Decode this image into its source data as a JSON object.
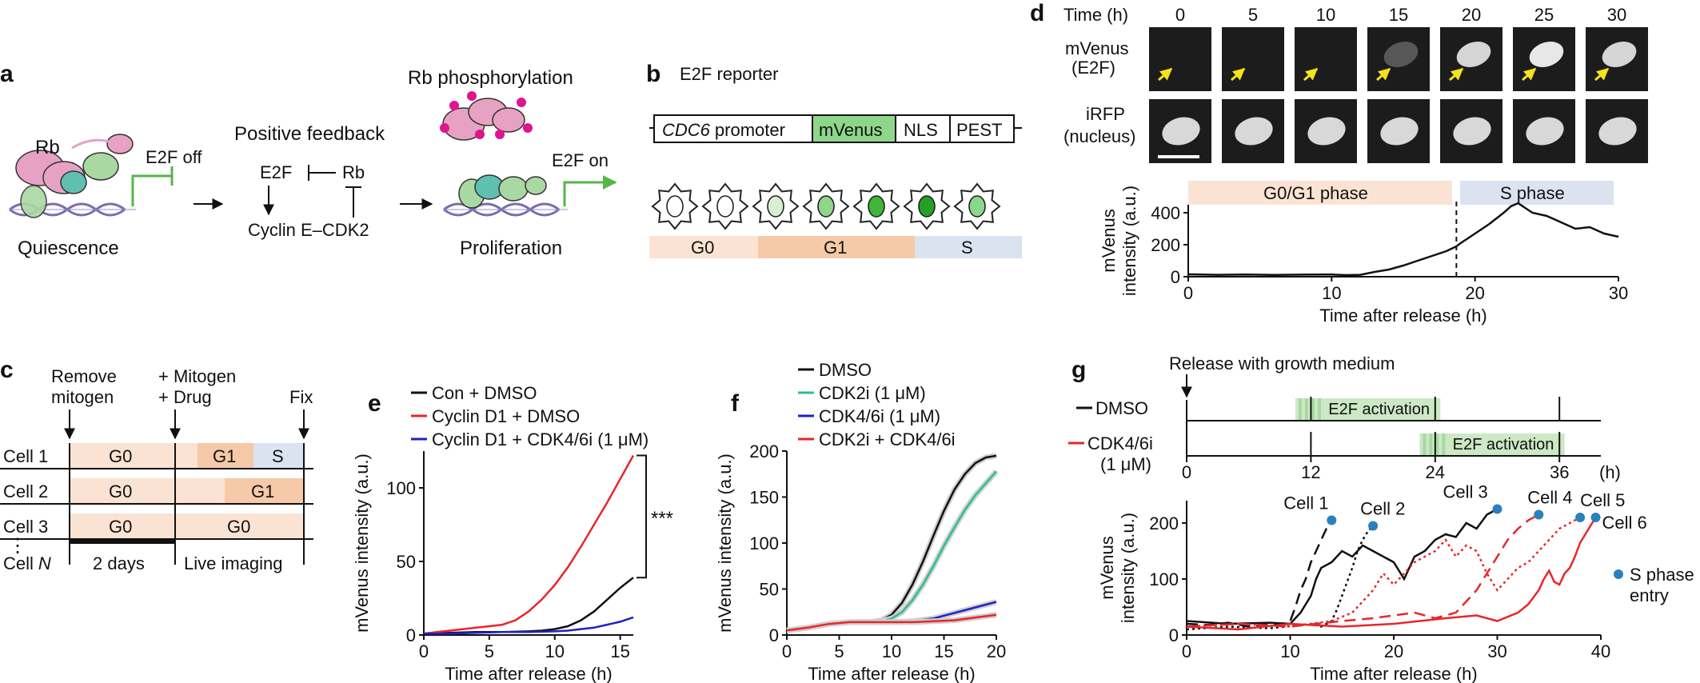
{
  "panels": {
    "a": {
      "letter": "a",
      "rb": "Rb",
      "e2f_off": "E2F off",
      "quiescence": "Quiescence",
      "positive_feedback": "Positive feedback",
      "e2f": "E2F",
      "rb2": "Rb",
      "cyclin": "Cyclin E–CDK2",
      "rb_phos": "Rb phosphorylation",
      "e2f_on": "E2F on",
      "proliferation": "Proliferation"
    },
    "b": {
      "letter": "b",
      "title": "E2F reporter",
      "promoter_italic": "CDC6",
      "promoter": "promoter",
      "mvenus": "mVenus",
      "nls": "NLS",
      "pest": "PEST",
      "phases": [
        "G0",
        "G1",
        "S"
      ]
    },
    "c": {
      "letter": "c",
      "remove": "Remove",
      "mitogen": "mitogen",
      "plus_mitogen": "+ Mitogen",
      "plus_drug": "+ Drug",
      "fix": "Fix",
      "cells": [
        "Cell 1",
        "Cell 2",
        "Cell 3"
      ],
      "dots": "⋮",
      "cell_n": "Cell",
      "cell_n_italic": "N",
      "g0": "G0",
      "g1": "G1",
      "s": "S",
      "two_days": "2 days",
      "live": "Live imaging"
    },
    "d": {
      "letter": "d",
      "time_label": "Time (h)",
      "times": [
        "0",
        "5",
        "10",
        "15",
        "20",
        "25",
        "30"
      ],
      "row1_a": "mVenus",
      "row1_b": "(E2F)",
      "row2_a": "iRFP",
      "row2_b": "(nucleus)",
      "g0g1": "G0/G1 phase",
      "sphase": "S phase"
    },
    "g": {
      "letter": "g",
      "release": "Release with growth medium",
      "dmso": "DMSO",
      "cdk46_a": "CDK4/6i",
      "cdk46_b": "(1 μM)",
      "tl_ticks": [
        "0",
        "12",
        "24",
        "36"
      ],
      "tl_unit": "(h)",
      "e2f_activation": "E2F activation",
      "cell_labels": [
        "Cell 1",
        "Cell 2",
        "Cell 3",
        "Cell 4",
        "Cell 5",
        "Cell 6"
      ],
      "s_entry_a": "S phase",
      "s_entry_b": "entry"
    }
  },
  "colors": {
    "g0": "#fbe3d3",
    "g1": "#f6c9a8",
    "s": "#dbe3f1",
    "green": "#56b64a",
    "mvenus_green": "#8ed68a",
    "red": "#e8262a",
    "blue": "#2020c8",
    "teal": "#2bbf8e",
    "dot": "#2a7fbf",
    "pink": "#e7a2c3",
    "magenta": "#e0148c"
  },
  "chart_data": [
    {
      "id": "d",
      "type": "line",
      "xlabel": "Time after release (h)",
      "ylabel": "mVenus intensity (a.u.)",
      "xlim": [
        0,
        30
      ],
      "ylim": [
        0,
        450
      ],
      "xticks": [
        "0",
        "10",
        "20",
        "30"
      ],
      "yticks": [
        "0",
        "200",
        "400"
      ],
      "x": [
        0,
        2,
        4,
        6,
        8,
        10,
        11,
        12,
        13,
        14,
        15,
        16,
        17,
        18,
        18.7,
        19,
        19.5,
        20,
        21,
        22,
        22.5,
        23,
        23.5,
        24,
        25,
        26,
        27,
        28,
        29,
        30
      ],
      "values": [
        15,
        12,
        14,
        11,
        13,
        14,
        10,
        12,
        30,
        45,
        70,
        100,
        130,
        160,
        190,
        210,
        240,
        270,
        330,
        400,
        440,
        460,
        430,
        400,
        380,
        340,
        300,
        310,
        270,
        250
      ],
      "boundary": 18.7,
      "phases": [
        {
          "name": "G0/G1 phase",
          "from": 0,
          "to": 18.7
        },
        {
          "name": "S phase",
          "from": 19,
          "to": 30
        }
      ]
    },
    {
      "id": "e",
      "letter": "e",
      "type": "line",
      "xlabel": "Time after release (h)",
      "ylabel": "mVenus intensity (a.u.)",
      "xlim": [
        0,
        16
      ],
      "ylim": [
        0,
        125
      ],
      "xticks": [
        "0",
        "5",
        "10",
        "15"
      ],
      "yticks": [
        "0",
        "50",
        "100"
      ],
      "significance": "***",
      "series": [
        {
          "name": "Con + DMSO",
          "color": "#111111",
          "x": [
            0,
            2,
            4,
            6,
            8,
            9,
            10,
            11,
            12,
            13,
            14,
            15,
            16
          ],
          "values": [
            1,
            1.5,
            2,
            2,
            2.5,
            3,
            4,
            6,
            10,
            16,
            24,
            32,
            39
          ]
        },
        {
          "name": "Cyclin D1 + DMSO",
          "color": "#e8262a",
          "x": [
            0,
            1,
            2,
            3,
            4,
            5,
            6,
            7,
            8,
            9,
            10,
            11,
            12,
            13,
            14,
            15,
            16
          ],
          "values": [
            1,
            2,
            3,
            4,
            5,
            6,
            7,
            10,
            16,
            24,
            34,
            46,
            60,
            75,
            90,
            106,
            122
          ]
        },
        {
          "name": "Cyclin D1 + CDK4/6i (1 μM)",
          "color": "#2020c8",
          "x": [
            0,
            2,
            4,
            6,
            8,
            10,
            11,
            12,
            13,
            14,
            15,
            16
          ],
          "values": [
            1,
            1,
            1.5,
            2,
            2,
            2.5,
            3,
            4,
            5,
            7,
            9,
            12
          ]
        }
      ]
    },
    {
      "id": "f",
      "letter": "f",
      "type": "line",
      "xlabel": "Time after release (h)",
      "ylabel": "mVenus intensity (a.u.)",
      "xlim": [
        0,
        20
      ],
      "ylim": [
        0,
        200
      ],
      "xticks": [
        "0",
        "5",
        "10",
        "15",
        "20"
      ],
      "yticks": [
        "0",
        "50",
        "100",
        "150",
        "200"
      ],
      "series": [
        {
          "name": "DMSO",
          "color": "#111111",
          "x": [
            0,
            2,
            4,
            6,
            8,
            9,
            10,
            11,
            12,
            13,
            14,
            15,
            16,
            17,
            18,
            19,
            20
          ],
          "values": [
            5,
            8,
            12,
            14,
            14,
            16,
            22,
            35,
            55,
            80,
            108,
            135,
            158,
            175,
            187,
            193,
            195
          ]
        },
        {
          "name": "CDK2i (1 μM)",
          "color": "#2bbf8e",
          "x": [
            0,
            2,
            4,
            6,
            8,
            9,
            10,
            11,
            12,
            13,
            14,
            15,
            16,
            17,
            18,
            19,
            20
          ],
          "values": [
            5,
            8,
            12,
            14,
            14,
            15,
            18,
            25,
            38,
            55,
            75,
            97,
            117,
            136,
            152,
            165,
            178
          ]
        },
        {
          "name": "CDK4/6i (1 μM)",
          "color": "#2020c8",
          "x": [
            0,
            2,
            4,
            6,
            8,
            10,
            12,
            14,
            16,
            18,
            20
          ],
          "values": [
            5,
            8,
            12,
            14,
            14,
            14,
            15,
            18,
            24,
            30,
            36
          ]
        },
        {
          "name": "CDK2i + CDK4/6i",
          "color": "#e8262a",
          "x": [
            0,
            2,
            4,
            6,
            8,
            10,
            12,
            14,
            16,
            18,
            20
          ],
          "values": [
            5,
            8,
            12,
            14,
            14,
            14,
            14,
            15,
            16,
            19,
            22
          ]
        }
      ]
    },
    {
      "id": "g-timeline",
      "type": "timeline",
      "xlim": [
        0,
        40
      ],
      "tick_values": [
        0,
        12,
        24,
        36
      ],
      "rows": [
        {
          "name": "DMSO",
          "color": "#111111",
          "activation": [
            10.5,
            24.5
          ],
          "entries": [
            12,
            24,
            36
          ]
        },
        {
          "name": "CDK4/6i (1 μM)",
          "color": "#e8262a",
          "activation": [
            22.5,
            36.5
          ],
          "entries": [
            12,
            24,
            36
          ]
        }
      ]
    },
    {
      "id": "g",
      "type": "line",
      "xlabel": "Time after release (h)",
      "ylabel": "mVenus intensity (a.u.)",
      "xlim": [
        0,
        40
      ],
      "ylim": [
        0,
        240
      ],
      "xticks": [
        "0",
        "10",
        "20",
        "30",
        "40"
      ],
      "yticks": [
        "0",
        "100",
        "200"
      ],
      "legend": "S phase entry",
      "series": [
        {
          "name": "Cell 1",
          "color": "#111111",
          "dash": "14,8",
          "x": [
            0,
            2,
            4,
            6,
            8,
            9,
            10,
            10.5,
            11,
            11.5,
            12,
            12.5,
            13,
            13.5,
            14
          ],
          "values": [
            20,
            18,
            22,
            15,
            20,
            18,
            25,
            50,
            80,
            100,
            130,
            150,
            170,
            190,
            205
          ]
        },
        {
          "name": "Cell 2",
          "color": "#111111",
          "dash": "3,4",
          "x": [
            0,
            4,
            8,
            12,
            13,
            14,
            14.5,
            15,
            15.5,
            16,
            16.5,
            17,
            17.5,
            18
          ],
          "values": [
            10,
            15,
            12,
            20,
            15,
            25,
            45,
            70,
            95,
            120,
            150,
            170,
            185,
            195
          ]
        },
        {
          "name": "Cell 3",
          "color": "#111111",
          "dash": "",
          "x": [
            0,
            4,
            8,
            10,
            11,
            12,
            12.5,
            13,
            14,
            15,
            16,
            17,
            18,
            19,
            20,
            21,
            22,
            23,
            24,
            25,
            26,
            27,
            28,
            29,
            30
          ],
          "values": [
            25,
            20,
            22,
            20,
            40,
            70,
            100,
            120,
            130,
            150,
            140,
            160,
            150,
            140,
            130,
            100,
            140,
            150,
            170,
            180,
            175,
            200,
            190,
            215,
            225
          ]
        },
        {
          "name": "Cell 4",
          "color": "#e8262a",
          "dash": "14,8",
          "x": [
            0,
            5,
            10,
            15,
            18,
            20,
            22,
            24,
            26,
            27,
            28,
            29,
            30,
            31,
            32,
            33,
            34
          ],
          "values": [
            15,
            20,
            15,
            25,
            30,
            35,
            40,
            30,
            40,
            60,
            80,
            110,
            140,
            170,
            190,
            205,
            215
          ]
        },
        {
          "name": "Cell 5",
          "color": "#e8262a",
          "dash": "3,4",
          "x": [
            0,
            5,
            10,
            14,
            16,
            17,
            18,
            19,
            20,
            22,
            24,
            25,
            26,
            27,
            28,
            29,
            30,
            31,
            32,
            33,
            34,
            35,
            36,
            37,
            38
          ],
          "values": [
            15,
            20,
            15,
            25,
            40,
            60,
            80,
            110,
            90,
            130,
            150,
            170,
            140,
            160,
            150,
            110,
            80,
            100,
            120,
            130,
            150,
            170,
            190,
            200,
            210
          ]
        },
        {
          "name": "Cell 6",
          "color": "#e8262a",
          "dash": "",
          "x": [
            0,
            5,
            10,
            15,
            20,
            25,
            28,
            30,
            32,
            33,
            34,
            34.5,
            35,
            35.5,
            36,
            36.5,
            37,
            37.5,
            38,
            38.5,
            39,
            39.5
          ],
          "values": [
            15,
            10,
            20,
            15,
            20,
            30,
            35,
            25,
            40,
            55,
            80,
            100,
            115,
            95,
            90,
            110,
            120,
            140,
            165,
            180,
            195,
            210
          ]
        }
      ]
    }
  ]
}
